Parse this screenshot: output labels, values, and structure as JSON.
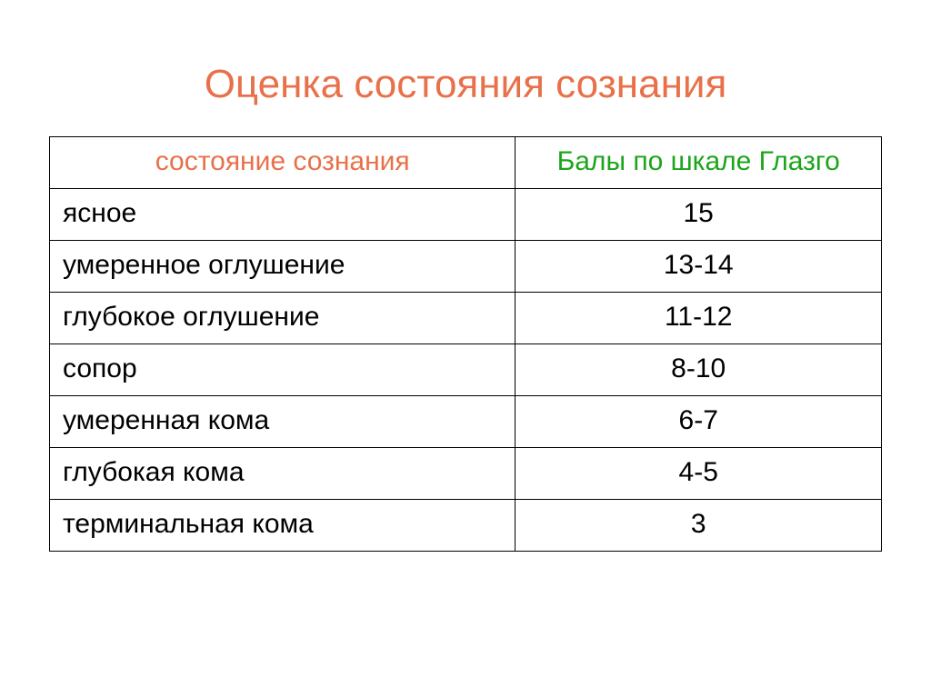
{
  "title": "Оценка состояния сознания",
  "title_color": "#e8714a",
  "table": {
    "type": "table",
    "border_color": "#000000",
    "background_color": "#ffffff",
    "header_fontsize": 30,
    "cell_fontsize": 30,
    "columns": [
      {
        "label": "состояние сознания",
        "color": "#e8714a",
        "align": "center",
        "width": "56%"
      },
      {
        "label": "Балы по шкале Глазго",
        "color": "#1aa61a",
        "align": "center",
        "width": "44%"
      }
    ],
    "rows": [
      {
        "state": "ясное",
        "score": "15"
      },
      {
        "state": "умеренное оглушение",
        "score": "13-14"
      },
      {
        "state": "глубокое оглушение",
        "score": "11-12"
      },
      {
        "state": "сопор",
        "score": "8-10"
      },
      {
        "state": "умеренная кома",
        "score": "6-7"
      },
      {
        "state": "глубокая кома",
        "score": "4-5"
      },
      {
        "state": "терминальная кома",
        "score": "3"
      }
    ],
    "row_text_color": "#000000"
  }
}
